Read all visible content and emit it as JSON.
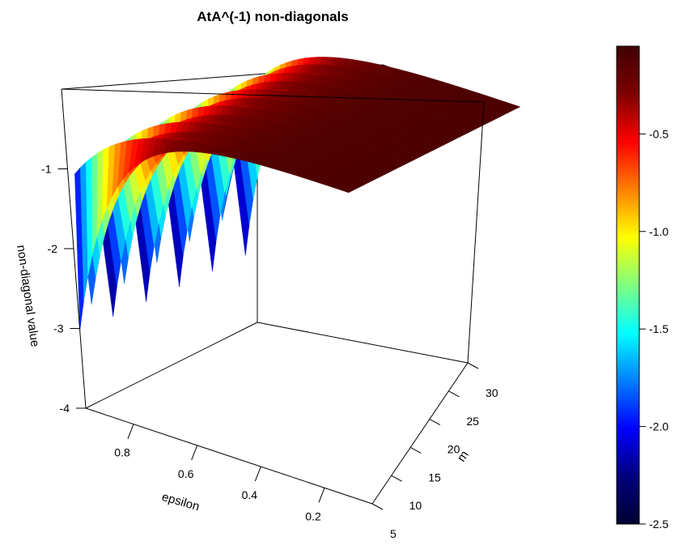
{
  "chart_data": {
    "type": "surface3d",
    "title": "AtA^(-1) non-diagonals",
    "xlabel": "epsilon",
    "ylabel": "m",
    "zlabel": "non-diagonal value",
    "x_ticks": [
      "0.2",
      "0.4",
      "0.6",
      "0.8"
    ],
    "y_ticks": [
      "5",
      "10",
      "15",
      "20",
      "25",
      "30"
    ],
    "z_ticks": [
      "-1",
      "-2",
      "-3",
      "-4"
    ],
    "xlim": [
      0.05,
      0.95
    ],
    "ylim": [
      5,
      30
    ],
    "zlim": [
      -4,
      0
    ],
    "colorbar": {
      "ticks": [
        "-0.5",
        "-1.0",
        "-1.5",
        "-2.0",
        "-2.5"
      ],
      "range": [
        -2.5,
        -0.05
      ],
      "palette": [
        "#000033",
        "#00007f",
        "#0000ff",
        "#0080ff",
        "#00ffff",
        "#80ff80",
        "#ffff00",
        "#ff8000",
        "#ff0000",
        "#7f0000",
        "#400000"
      ]
    }
  }
}
